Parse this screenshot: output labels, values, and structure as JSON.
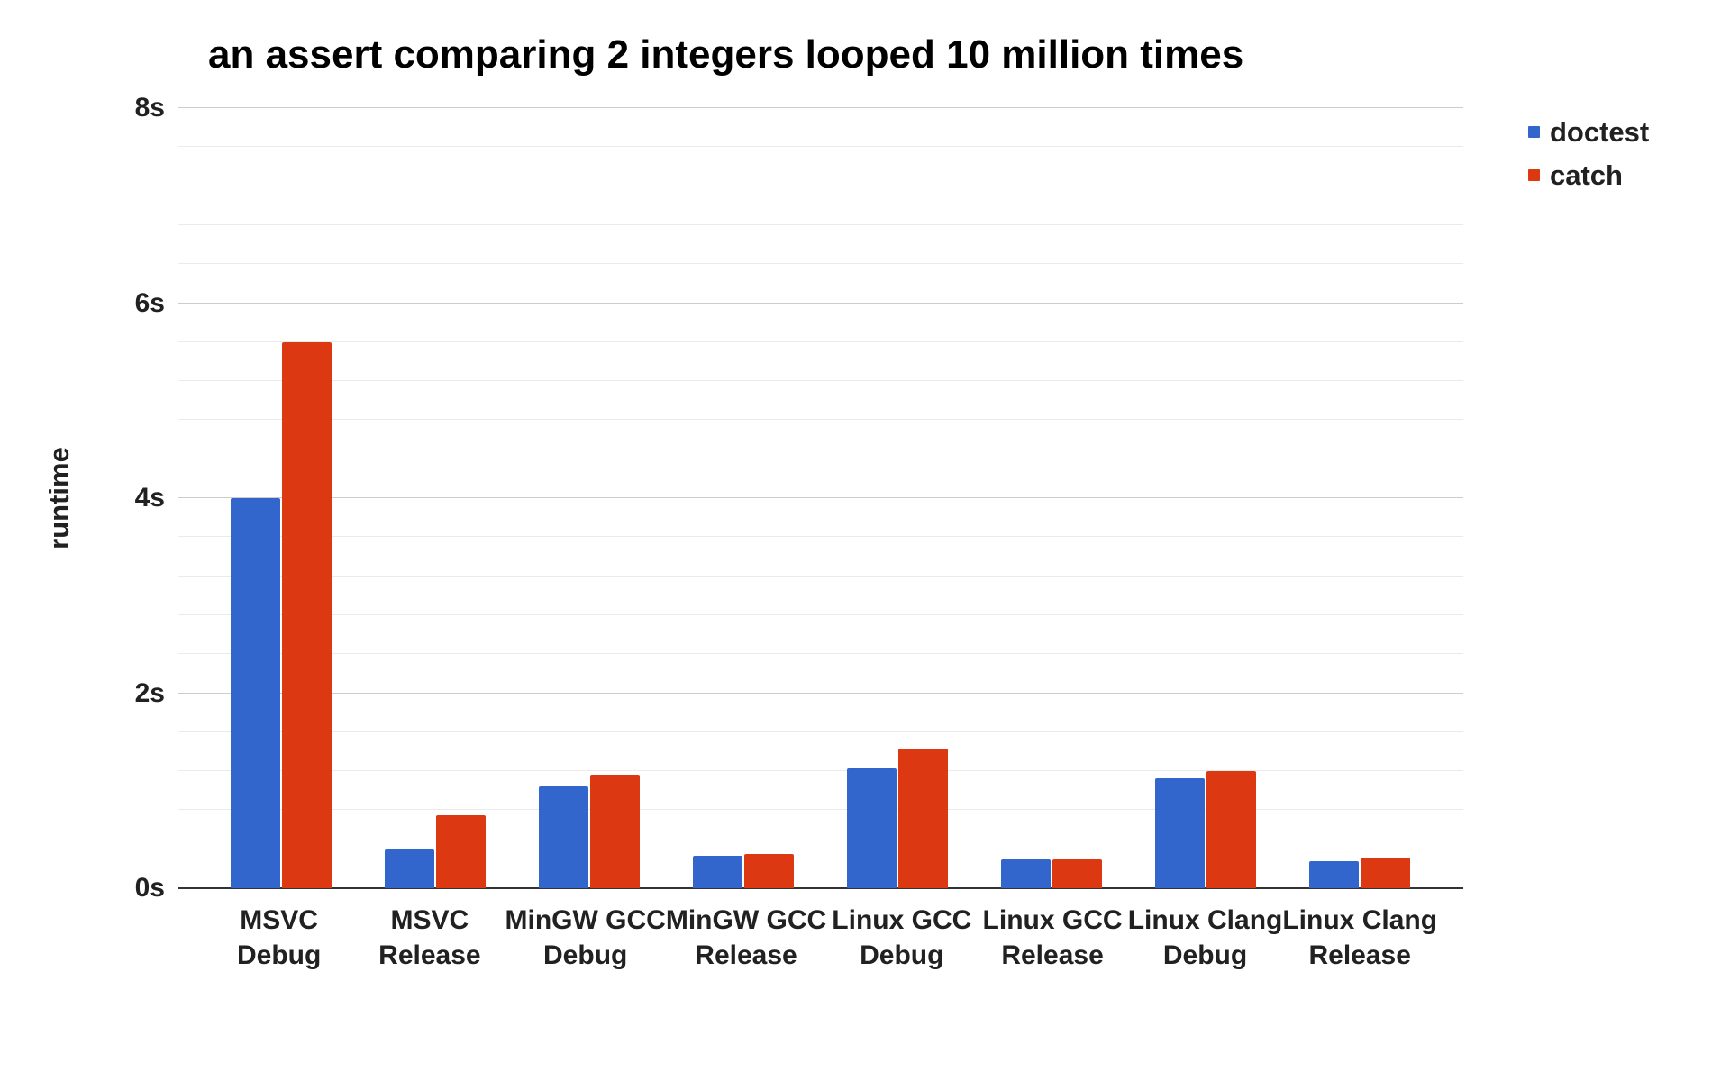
{
  "title": "an assert comparing 2 integers looped 10 million times",
  "legend": {
    "position": "top-right",
    "items": [
      {
        "label": "doctest",
        "color": "#3366cc"
      },
      {
        "label": "catch",
        "color": "#dc3912"
      }
    ]
  },
  "chart_data": {
    "type": "bar",
    "title": "an assert comparing 2 integers looped 10 million times",
    "xlabel": "",
    "ylabel": "runtime",
    "ylim": [
      0,
      8
    ],
    "grid": true,
    "legend_position": "top-right",
    "yticks": [
      {
        "value": 0,
        "label": "0s"
      },
      {
        "value": 2,
        "label": "2s"
      },
      {
        "value": 4,
        "label": "4s"
      },
      {
        "value": 6,
        "label": "6s"
      },
      {
        "value": 8,
        "label": "8s"
      }
    ],
    "minor_gridline_step": 0.4,
    "major_gridline_step": 2,
    "categories": [
      "MSVC Debug",
      "MSVC Release",
      "MinGW GCC Debug",
      "MinGW GCC Release",
      "Linux GCC Debug",
      "Linux GCC Release",
      "Linux Clang Debug",
      "Linux Clang Release"
    ],
    "category_lines": [
      [
        "MSVC",
        "Debug"
      ],
      [
        "MSVC",
        "Release"
      ],
      [
        "MinGW GCC",
        "Debug"
      ],
      [
        "MinGW GCC",
        "Release"
      ],
      [
        "Linux GCC",
        "Debug"
      ],
      [
        "Linux GCC",
        "Release"
      ],
      [
        "Linux Clang",
        "Debug"
      ],
      [
        "Linux Clang",
        "Release"
      ]
    ],
    "series": [
      {
        "name": "doctest",
        "color": "#3366cc",
        "values": [
          4.0,
          0.4,
          1.04,
          0.33,
          1.23,
          0.3,
          1.13,
          0.28
        ]
      },
      {
        "name": "catch",
        "color": "#dc3912",
        "values": [
          5.6,
          0.75,
          1.16,
          0.35,
          1.43,
          0.3,
          1.2,
          0.31
        ]
      }
    ],
    "colors": {
      "minor_gridline": "#ebebeb",
      "major_gridline": "#cccccc",
      "axis_line": "#333333",
      "text": "#212121",
      "title_text": "#000000"
    }
  }
}
